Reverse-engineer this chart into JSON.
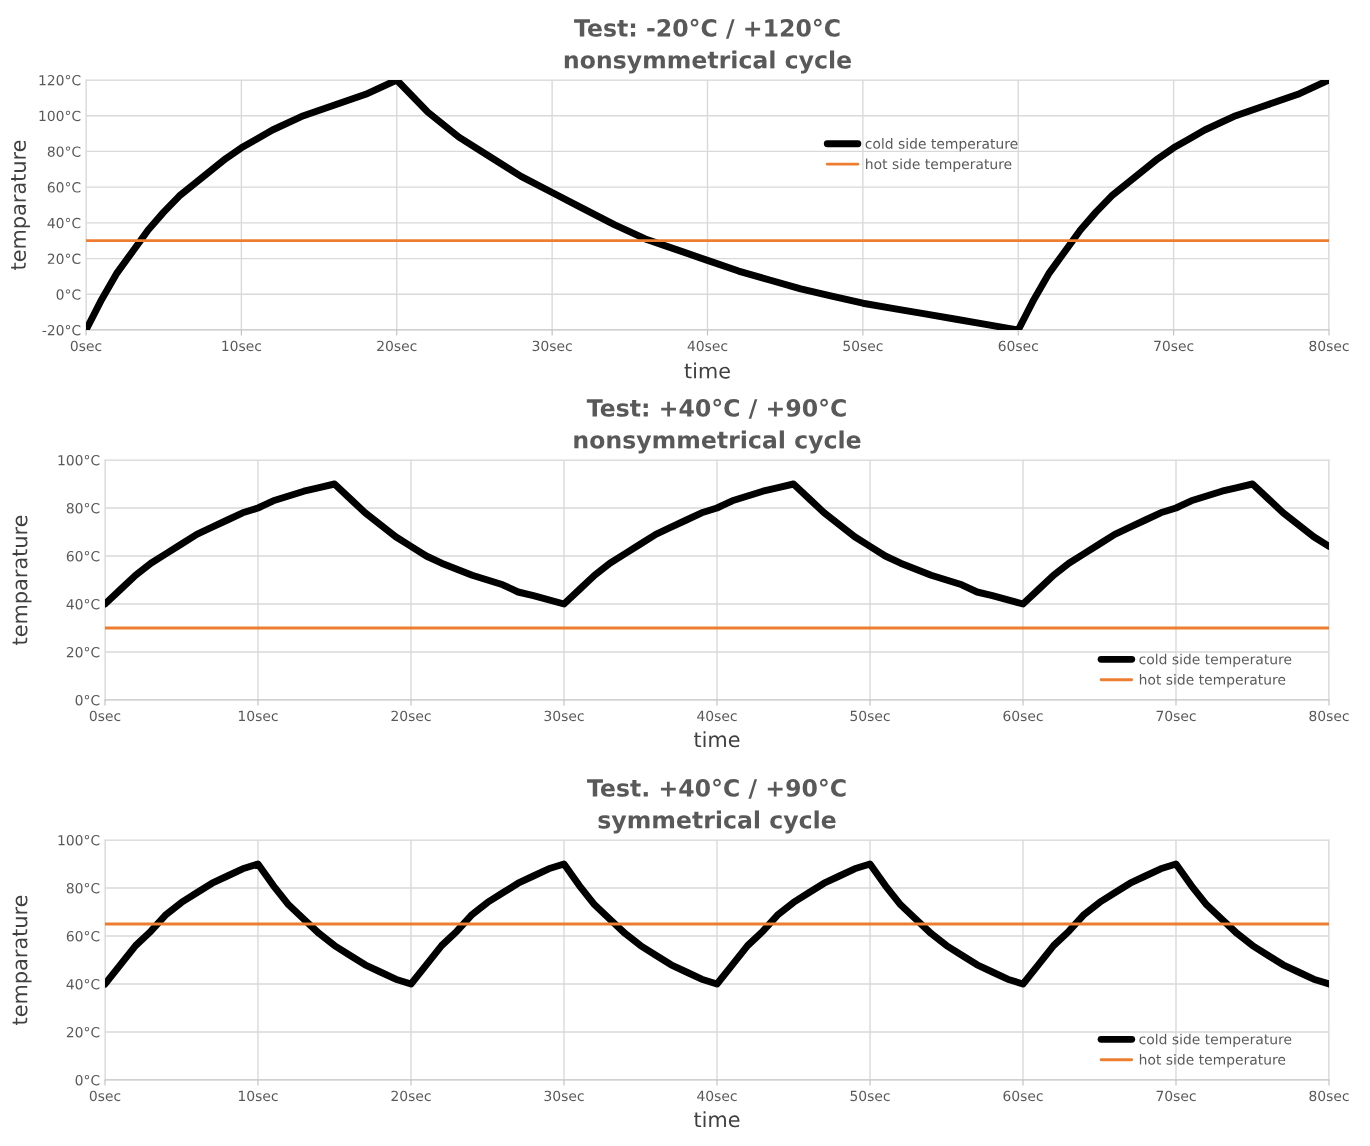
{
  "chart_data": [
    {
      "type": "line",
      "title": "Test: -20°C / +120°C",
      "subtitle": "nonsymmetrical cycle",
      "xlabel": "time",
      "ylabel": "temparature",
      "xlim": [
        0,
        80
      ],
      "xticks": [
        {
          "value": 0,
          "label": "0sec"
        },
        {
          "value": 10,
          "label": "10sec"
        },
        {
          "value": 20,
          "label": "20sec"
        },
        {
          "value": 30,
          "label": "30sec"
        },
        {
          "value": 40,
          "label": "40sec"
        },
        {
          "value": 50,
          "label": "50sec"
        },
        {
          "value": 60,
          "label": "60sec"
        },
        {
          "value": 70,
          "label": "70sec"
        },
        {
          "value": 80,
          "label": "80sec"
        }
      ],
      "ylim": [
        -20,
        120
      ],
      "yticks": [
        {
          "value": -20,
          "label": "-20°C"
        },
        {
          "value": 0,
          "label": "0°C"
        },
        {
          "value": 20,
          "label": "20°C"
        },
        {
          "value": 40,
          "label": "40°C"
        },
        {
          "value": 60,
          "label": "60°C"
        },
        {
          "value": 80,
          "label": "80°C"
        },
        {
          "value": 100,
          "label": "100°C"
        },
        {
          "value": 120,
          "label": "120°C"
        }
      ],
      "grid": true,
      "legend": "right",
      "series": [
        {
          "name": "cold side temperature",
          "color": "#000000",
          "x": [
            0,
            1,
            2,
            3,
            4,
            5,
            6,
            7,
            8,
            9,
            10,
            11,
            12,
            14,
            16,
            18,
            20,
            22,
            24,
            26,
            28,
            30,
            32,
            34,
            36,
            38,
            40,
            42,
            44,
            46,
            48,
            50,
            52,
            54,
            56,
            58,
            60,
            61,
            62,
            63,
            64,
            65,
            66,
            67,
            68,
            69,
            70,
            71,
            72,
            74,
            76,
            78,
            80
          ],
          "values": [
            -20,
            -3,
            12,
            24,
            36,
            46,
            55,
            62,
            69,
            76,
            82,
            87,
            92,
            100,
            106,
            112,
            120,
            102,
            88,
            77,
            66,
            57,
            48,
            39,
            31,
            25,
            19,
            13,
            8,
            3,
            -1,
            -5,
            -8,
            -11,
            -14,
            -17,
            -20,
            -3,
            12,
            24,
            36,
            46,
            55,
            62,
            69,
            76,
            82,
            87,
            92,
            100,
            106,
            112,
            120
          ]
        },
        {
          "name": "hot side temperature",
          "color": "#ed7d31",
          "x": [
            0,
            80
          ],
          "values": [
            30,
            30
          ]
        }
      ]
    },
    {
      "type": "line",
      "title": "Test: +40°C / +90°C",
      "subtitle": "nonsymmetrical cycle",
      "xlabel": "time",
      "ylabel": "temparature",
      "xlim": [
        0,
        80
      ],
      "xticks": [
        {
          "value": 0,
          "label": "0sec"
        },
        {
          "value": 10,
          "label": "10sec"
        },
        {
          "value": 20,
          "label": "20sec"
        },
        {
          "value": 30,
          "label": "30sec"
        },
        {
          "value": 40,
          "label": "40sec"
        },
        {
          "value": 50,
          "label": "50sec"
        },
        {
          "value": 60,
          "label": "60sec"
        },
        {
          "value": 70,
          "label": "70sec"
        },
        {
          "value": 80,
          "label": "80sec"
        }
      ],
      "ylim": [
        0,
        100
      ],
      "yticks": [
        {
          "value": 0,
          "label": "0°C"
        },
        {
          "value": 20,
          "label": "20°C"
        },
        {
          "value": 40,
          "label": "40°C"
        },
        {
          "value": 60,
          "label": "60°C"
        },
        {
          "value": 80,
          "label": "80°C"
        },
        {
          "value": 100,
          "label": "100°C"
        }
      ],
      "grid": true,
      "legend": "bottom right",
      "series": [
        {
          "name": "cold side temperature",
          "color": "#000000",
          "x": [
            0,
            1,
            2,
            3,
            4,
            5,
            6,
            7,
            8,
            9,
            10,
            11,
            12,
            13,
            14,
            15,
            16,
            17,
            18,
            19,
            20,
            21,
            22,
            24,
            26,
            27,
            28,
            30,
            31,
            32,
            33,
            34,
            35,
            36,
            37,
            38,
            39,
            40,
            41,
            42,
            43,
            44,
            45,
            46,
            47,
            48,
            49,
            50,
            51,
            52,
            54,
            56,
            57,
            58,
            60,
            61,
            62,
            63,
            64,
            65,
            66,
            67,
            68,
            69,
            70,
            71,
            72,
            73,
            74,
            75,
            76,
            77,
            78,
            79,
            80
          ],
          "values": [
            40,
            46,
            52,
            57,
            61,
            65,
            69,
            72,
            75,
            78,
            80,
            83,
            85,
            87,
            88.5,
            90,
            84,
            78,
            73,
            68,
            64,
            60,
            57,
            52,
            48,
            45,
            43.5,
            40,
            46,
            52,
            57,
            61,
            65,
            69,
            72,
            75,
            78,
            80,
            83,
            85,
            87,
            88.5,
            90,
            84,
            78,
            73,
            68,
            64,
            60,
            57,
            52,
            48,
            45,
            43.5,
            40,
            46,
            52,
            57,
            61,
            65,
            69,
            72,
            75,
            78,
            80,
            83,
            85,
            87,
            88.5,
            90,
            84,
            78,
            73,
            68,
            64
          ]
        },
        {
          "name": "hot side temperature",
          "color": "#ed7d31",
          "x": [
            0,
            80
          ],
          "values": [
            30,
            30
          ]
        }
      ]
    },
    {
      "type": "line",
      "title": "Test. +40°C / +90°C",
      "subtitle": "symmetrical cycle",
      "xlabel": "time",
      "ylabel": "temparature",
      "xlim": [
        0,
        80
      ],
      "xticks": [
        {
          "value": 0,
          "label": "0sec"
        },
        {
          "value": 10,
          "label": "10sec"
        },
        {
          "value": 20,
          "label": "20sec"
        },
        {
          "value": 30,
          "label": "30sec"
        },
        {
          "value": 40,
          "label": "40sec"
        },
        {
          "value": 50,
          "label": "50sec"
        },
        {
          "value": 60,
          "label": "60sec"
        },
        {
          "value": 70,
          "label": "70sec"
        },
        {
          "value": 80,
          "label": "80sec"
        }
      ],
      "ylim": [
        0,
        100
      ],
      "yticks": [
        {
          "value": 0,
          "label": "0°C"
        },
        {
          "value": 20,
          "label": "20°C"
        },
        {
          "value": 40,
          "label": "40°C"
        },
        {
          "value": 60,
          "label": "60°C"
        },
        {
          "value": 80,
          "label": "80°C"
        },
        {
          "value": 100,
          "label": "100°C"
        }
      ],
      "grid": true,
      "legend": "bottom right",
      "series": [
        {
          "name": "cold side temperature",
          "color": "#000000",
          "x": [
            0,
            1,
            2,
            3,
            4,
            5,
            6,
            7,
            8,
            9,
            10,
            11,
            12,
            13,
            14,
            15,
            16,
            17,
            18,
            19,
            20,
            21,
            22,
            23,
            24,
            25,
            26,
            27,
            28,
            29,
            30,
            31,
            32,
            33,
            34,
            35,
            36,
            37,
            38,
            39,
            40,
            41,
            42,
            43,
            44,
            45,
            46,
            47,
            48,
            49,
            50,
            51,
            52,
            53,
            54,
            55,
            56,
            57,
            58,
            59,
            60,
            61,
            62,
            63,
            64,
            65,
            66,
            67,
            68,
            69,
            70,
            71,
            72,
            73,
            74,
            75,
            76,
            77,
            78,
            79,
            80
          ],
          "values": [
            40,
            48,
            56,
            62,
            69,
            74,
            78,
            82,
            85,
            88,
            90,
            81,
            73,
            67,
            61,
            56,
            52,
            48,
            45,
            42,
            40,
            48,
            56,
            62,
            69,
            74,
            78,
            82,
            85,
            88,
            90,
            81,
            73,
            67,
            61,
            56,
            52,
            48,
            45,
            42,
            40,
            48,
            56,
            62,
            69,
            74,
            78,
            82,
            85,
            88,
            90,
            81,
            73,
            67,
            61,
            56,
            52,
            48,
            45,
            42,
            40,
            48,
            56,
            62,
            69,
            74,
            78,
            82,
            85,
            88,
            90,
            81,
            73,
            67,
            61,
            56,
            52,
            48,
            45,
            42,
            40
          ]
        },
        {
          "name": "hot side temperature",
          "color": "#ed7d31",
          "x": [
            0,
            80
          ],
          "values": [
            65,
            65
          ]
        }
      ]
    }
  ]
}
